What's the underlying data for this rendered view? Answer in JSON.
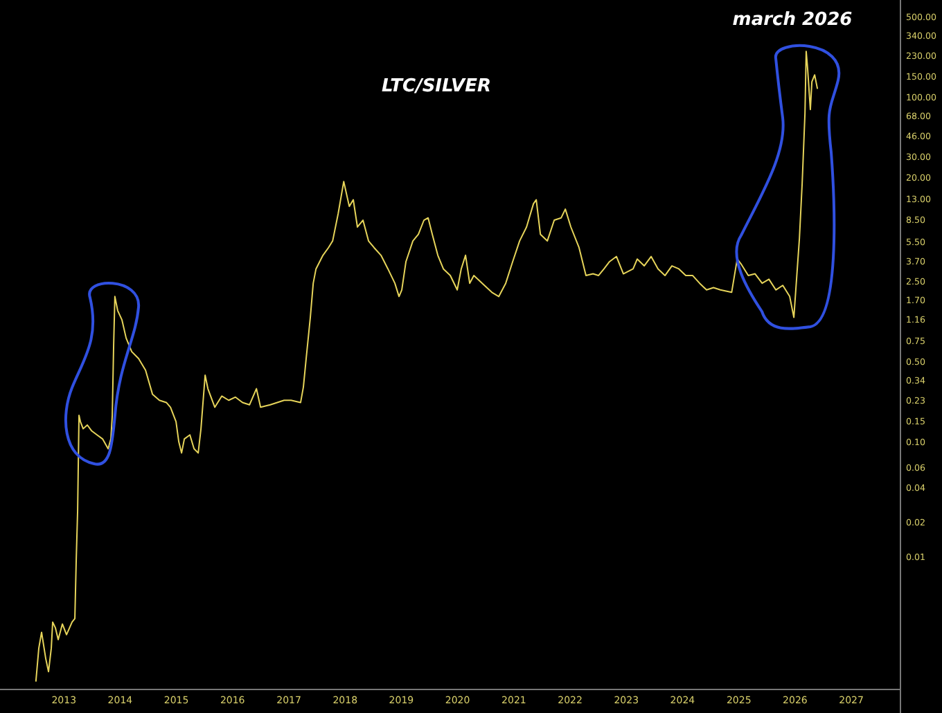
{
  "chart_data": {
    "type": "line",
    "title": "LTC/SILVER",
    "log": true,
    "grid": false,
    "line_style": "solid",
    "annotations": [
      "march 2026"
    ],
    "xlim": [
      "2011-11-13",
      "2027-11-16"
    ],
    "xticks": [
      "2013",
      "2014",
      "2015",
      "2016",
      "2017",
      "2018",
      "2019",
      "2020",
      "2021",
      "2022",
      "2023",
      "2024",
      "2025",
      "2026",
      "2027"
    ],
    "ylim": [
      0.0007,
      700
    ],
    "yticks": [
      {
        "value": 500,
        "label": "500.00"
      },
      {
        "value": 340,
        "label": "340.00"
      },
      {
        "value": 230,
        "label": "230.00"
      },
      {
        "value": 150,
        "label": "150.00"
      },
      {
        "value": 100,
        "label": "100.00"
      },
      {
        "value": 68,
        "label": "68.00"
      },
      {
        "value": 46,
        "label": "46.00"
      },
      {
        "value": 30,
        "label": "30.00"
      },
      {
        "value": 20,
        "label": "20.00"
      },
      {
        "value": 13,
        "label": "13.00"
      },
      {
        "value": 8.5,
        "label": "8.50"
      },
      {
        "value": 5.5,
        "label": "5.50"
      },
      {
        "value": 3.7,
        "label": "3.70"
      },
      {
        "value": 2.5,
        "label": "2.50"
      },
      {
        "value": 1.7,
        "label": "1.70"
      },
      {
        "value": 1.16,
        "label": "1.16"
      },
      {
        "value": 0.75,
        "label": "0.75"
      },
      {
        "value": 0.5,
        "label": "0.50"
      },
      {
        "value": 0.34,
        "label": "0.34"
      },
      {
        "value": 0.23,
        "label": "0.23"
      },
      {
        "value": 0.15,
        "label": "0.15"
      },
      {
        "value": 0.1,
        "label": "0.10"
      },
      {
        "value": 0.06,
        "label": "0.06"
      },
      {
        "value": 0.04,
        "label": "0.04"
      },
      {
        "value": 0.02,
        "label": "0.02"
      },
      {
        "value": 0.01,
        "label": "0.01"
      }
    ],
    "series": [
      {
        "color": "#e6d45a",
        "x": [
          "2012-07-03",
          "2012-07-22",
          "2012-08-09",
          "2012-09-05",
          "2012-09-23",
          "2012-10-11",
          "2012-10-20",
          "2012-11-07",
          "2012-11-25",
          "2012-12-22",
          "2013-01-18",
          "2013-02-23",
          "2013-03-13",
          "2013-03-22",
          "2013-03-31",
          "2013-04-09",
          "2013-04-18",
          "2013-05-06",
          "2013-06-02",
          "2013-06-29",
          "2013-08-04",
          "2013-09-09",
          "2013-10-15",
          "2013-11-02",
          "2013-11-11",
          "2013-11-20",
          "2013-11-28",
          "2013-12-16",
          "2014-01-13",
          "2014-02-09",
          "2014-03-17",
          "2014-05-01",
          "2014-06-15",
          "2014-07-30",
          "2014-09-13",
          "2014-10-28",
          "2014-11-24",
          "2014-12-30",
          "2015-01-17",
          "2015-02-04",
          "2015-02-22",
          "2015-03-30",
          "2015-04-26",
          "2015-05-23",
          "2015-06-10",
          "2015-07-07",
          "2015-07-25",
          "2015-09-08",
          "2015-10-23",
          "2015-12-07",
          "2016-01-20",
          "2016-03-06",
          "2016-04-20",
          "2016-06-04",
          "2016-07-01",
          "2016-09-02",
          "2016-12-01",
          "2017-01-15",
          "2017-03-18",
          "2017-04-05",
          "2017-04-23",
          "2017-05-20",
          "2017-06-08",
          "2017-06-26",
          "2017-08-10",
          "2017-09-15",
          "2017-10-12",
          "2017-11-17",
          "2017-12-23",
          "2018-01-28",
          "2018-02-23",
          "2018-03-22",
          "2018-04-27",
          "2018-06-02",
          "2018-07-08",
          "2018-08-22",
          "2018-10-06",
          "2018-11-20",
          "2018-12-17",
          "2019-01-04",
          "2019-01-31",
          "2019-03-17",
          "2019-04-22",
          "2019-05-28",
          "2019-06-24",
          "2019-07-21",
          "2019-08-26",
          "2019-10-01",
          "2019-11-15",
          "2019-12-30",
          "2020-01-25",
          "2020-02-22",
          "2020-03-20",
          "2020-04-16",
          "2020-06-09",
          "2020-08-11",
          "2020-09-25",
          "2020-11-09",
          "2020-12-24",
          "2021-02-07",
          "2021-03-24",
          "2021-05-08",
          "2021-05-26",
          "2021-06-22",
          "2021-08-06",
          "2021-09-20",
          "2021-11-04",
          "2021-12-01",
          "2022-01-06",
          "2022-02-28",
          "2022-04-14",
          "2022-05-30",
          "2022-07-04",
          "2022-08-09",
          "2022-09-14",
          "2022-10-29",
          "2022-12-13",
          "2023-02-14",
          "2023-03-13",
          "2023-04-27",
          "2023-06-11",
          "2023-07-26",
          "2023-09-09",
          "2023-10-24",
          "2023-12-08",
          "2024-01-22",
          "2024-03-07",
          "2024-04-21",
          "2024-06-05",
          "2024-07-20",
          "2024-09-03",
          "2024-11-15",
          "2024-12-21",
          "2025-01-17",
          "2025-03-03",
          "2025-04-16",
          "2025-06-01",
          "2025-07-15",
          "2025-08-29",
          "2025-10-13",
          "2025-11-27",
          "2025-12-24",
          "2026-01-29",
          "2026-02-16",
          "2026-03-06",
          "2026-03-14",
          "2026-03-23",
          "2026-04-10",
          "2026-04-20",
          "2026-05-08",
          "2026-05-26"
        ],
        "values": [
          0.00082,
          0.0016,
          0.0022,
          0.0013,
          0.001,
          0.0016,
          0.0027,
          0.0024,
          0.0019,
          0.0026,
          0.0021,
          0.0027,
          0.0029,
          0.0094,
          0.025,
          0.17,
          0.15,
          0.13,
          0.14,
          0.125,
          0.115,
          0.106,
          0.087,
          0.106,
          0.17,
          0.7,
          1.84,
          1.39,
          1.15,
          0.8,
          0.61,
          0.53,
          0.42,
          0.26,
          0.23,
          0.22,
          0.2,
          0.15,
          0.1,
          0.08,
          0.106,
          0.115,
          0.087,
          0.08,
          0.13,
          0.38,
          0.29,
          0.2,
          0.25,
          0.23,
          0.245,
          0.22,
          0.21,
          0.29,
          0.2,
          0.21,
          0.23,
          0.23,
          0.22,
          0.3,
          0.53,
          1.21,
          2.4,
          3.2,
          4.2,
          4.9,
          5.6,
          9.7,
          18.4,
          11.2,
          12.8,
          7.4,
          8.5,
          5.6,
          4.9,
          4.2,
          3.2,
          2.4,
          1.84,
          2.1,
          3.7,
          5.6,
          6.4,
          8.5,
          8.9,
          6.4,
          4.2,
          3.2,
          2.8,
          2.1,
          3.2,
          4.2,
          2.4,
          2.8,
          2.4,
          2.0,
          1.84,
          2.4,
          3.7,
          5.6,
          7.4,
          11.8,
          12.8,
          6.4,
          5.6,
          8.5,
          8.9,
          10.6,
          7.4,
          4.9,
          2.8,
          2.9,
          2.8,
          3.2,
          3.7,
          4.1,
          2.9,
          3.2,
          3.9,
          3.4,
          4.1,
          3.2,
          2.8,
          3.4,
          3.2,
          2.8,
          2.8,
          2.4,
          2.1,
          2.2,
          2.1,
          2.0,
          3.9,
          3.5,
          2.8,
          2.9,
          2.4,
          2.6,
          2.1,
          2.3,
          1.84,
          1.21,
          5.9,
          17.9,
          72,
          250,
          179,
          78,
          136,
          156,
          118
        ]
      }
    ]
  }
}
